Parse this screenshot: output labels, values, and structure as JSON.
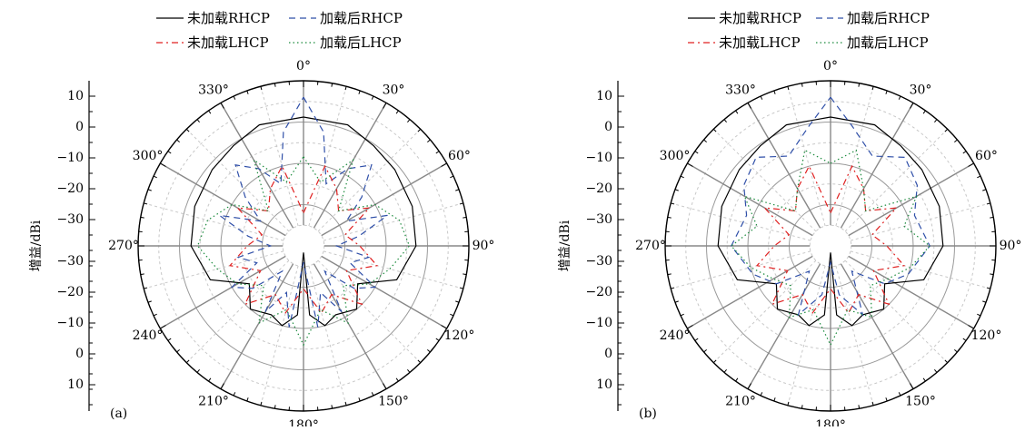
{
  "chart_data": [
    {
      "type": "polar-line",
      "panel_label": "(a)",
      "ylabel": "增益/dBi",
      "angle_unit": "°",
      "angle_ticks": [
        0,
        30,
        60,
        90,
        120,
        150,
        180,
        210,
        240,
        270,
        300,
        330
      ],
      "radial_labels_upper": [
        "10",
        "0",
        "−10",
        "−20",
        "−30"
      ],
      "radial_labels_lower": [
        "−30",
        "−20",
        "−10",
        "0",
        "10"
      ],
      "r_range_dbi": [
        -35,
        15
      ],
      "grid": true,
      "legend_placement": "top",
      "legend": [
        "未加载RHCP",
        "加载后RHCP",
        "未加载LHCP",
        "加载后LHCP"
      ],
      "series": [
        {
          "name": "未加载RHCP",
          "color": "#000000",
          "dash": "solid",
          "angles": [
            0,
            20,
            35,
            50,
            70,
            90,
            110,
            125,
            140,
            155,
            165,
            175,
            180,
            185,
            195,
            205,
            220,
            235,
            250,
            270,
            290,
            310,
            325,
            340,
            360
          ],
          "gain": [
            4,
            4,
            2,
            1,
            0,
            -1,
            -5,
            -15,
            -10,
            -12,
            -10,
            -14,
            -33,
            -14,
            -10,
            -12,
            -10,
            -15,
            -5,
            -1,
            0,
            1,
            2,
            4,
            4
          ]
        },
        {
          "name": "加载后RHCP",
          "color": "#2f4fa8",
          "dash": "dashed",
          "angles": [
            0,
            10,
            20,
            30,
            40,
            50,
            60,
            70,
            80,
            90,
            100,
            110,
            120,
            130,
            140,
            150,
            160,
            170,
            180,
            190,
            200,
            210,
            220,
            230,
            240,
            250,
            260,
            270,
            280,
            290,
            300,
            310,
            320,
            330,
            340,
            350,
            360
          ],
          "gain": [
            10,
            0,
            -15,
            -8,
            -3,
            -12,
            -20,
            -8,
            -18,
            -25,
            -15,
            -20,
            -10,
            -15,
            -25,
            -12,
            -20,
            -10,
            -30,
            -10,
            -20,
            -12,
            -25,
            -15,
            -10,
            -20,
            -15,
            -25,
            -18,
            -8,
            -20,
            -12,
            -3,
            -8,
            -15,
            0,
            10
          ]
        },
        {
          "name": "未加载LHCP",
          "color": "#e02020",
          "dash": "dashdot",
          "angles": [
            0,
            15,
            30,
            45,
            60,
            75,
            90,
            105,
            120,
            135,
            150,
            165,
            180,
            195,
            210,
            225,
            240,
            255,
            270,
            285,
            300,
            315,
            330,
            345,
            360
          ],
          "gain": [
            -25,
            -10,
            -15,
            -20,
            -12,
            -22,
            -18,
            -12,
            -20,
            -10,
            -18,
            -14,
            -22,
            -14,
            -18,
            -10,
            -20,
            -12,
            -18,
            -22,
            -12,
            -20,
            -15,
            -10,
            -25
          ]
        },
        {
          "name": "加载后LHCP",
          "color": "#1a8a3c",
          "dash": "dotted",
          "angles": [
            0,
            15,
            30,
            45,
            60,
            75,
            90,
            105,
            120,
            135,
            150,
            165,
            180,
            195,
            210,
            225,
            240,
            255,
            270,
            285,
            300,
            315,
            330,
            345,
            360
          ],
          "gain": [
            -8,
            -15,
            -5,
            -20,
            -10,
            -5,
            -3,
            -8,
            -12,
            -18,
            -8,
            -15,
            -5,
            -15,
            -8,
            -18,
            -12,
            -8,
            -3,
            -5,
            -10,
            -20,
            -5,
            -15,
            -8
          ]
        }
      ]
    },
    {
      "type": "polar-line",
      "panel_label": "(b)",
      "ylabel": "增益/dBi",
      "angle_unit": "°",
      "angle_ticks": [
        0,
        30,
        60,
        90,
        120,
        150,
        180,
        210,
        240,
        270,
        300,
        330
      ],
      "radial_labels_upper": [
        "10",
        "0",
        "−10",
        "−20",
        "−30"
      ],
      "radial_labels_lower": [
        "−30",
        "−20",
        "−10",
        "0",
        "10"
      ],
      "r_range_dbi": [
        -35,
        15
      ],
      "grid": true,
      "legend_placement": "top",
      "legend": [
        "未加载RHCP",
        "加载后RHCP",
        "未加载LHCP",
        "加载后LHCP"
      ],
      "series": [
        {
          "name": "未加载RHCP",
          "color": "#000000",
          "dash": "solid",
          "angles": [
            0,
            20,
            35,
            50,
            70,
            90,
            110,
            125,
            140,
            155,
            165,
            175,
            180,
            185,
            195,
            205,
            220,
            235,
            250,
            270,
            290,
            310,
            325,
            340,
            360
          ],
          "gain": [
            4,
            4,
            2,
            1,
            0,
            -1,
            -5,
            -15,
            -10,
            -12,
            -10,
            -14,
            -33,
            -14,
            -10,
            -12,
            -10,
            -15,
            -5,
            -1,
            0,
            1,
            2,
            4,
            4
          ]
        },
        {
          "name": "加载后RHCP",
          "color": "#2f4fa8",
          "dash": "dashed",
          "angles": [
            0,
            10,
            25,
            40,
            55,
            70,
            90,
            110,
            125,
            140,
            155,
            170,
            180,
            190,
            205,
            220,
            235,
            250,
            270,
            290,
            305,
            320,
            335,
            350,
            360
          ],
          "gain": [
            10,
            2,
            -5,
            0,
            -3,
            -8,
            -5,
            -10,
            -15,
            -25,
            -12,
            -20,
            -30,
            -20,
            -12,
            -25,
            -15,
            -10,
            -5,
            -8,
            -3,
            0,
            -5,
            2,
            10
          ]
        },
        {
          "name": "未加载LHCP",
          "color": "#e02020",
          "dash": "dashdot",
          "angles": [
            0,
            15,
            30,
            45,
            60,
            75,
            90,
            105,
            120,
            135,
            150,
            165,
            180,
            195,
            210,
            225,
            240,
            255,
            270,
            285,
            300,
            315,
            330,
            345,
            360
          ],
          "gain": [
            -25,
            -10,
            -15,
            -20,
            -12,
            -22,
            -18,
            -12,
            -20,
            -10,
            -18,
            -14,
            -22,
            -14,
            -18,
            -10,
            -20,
            -12,
            -18,
            -22,
            -12,
            -20,
            -15,
            -10,
            -25
          ]
        },
        {
          "name": "加载后LHCP",
          "color": "#1a8a3c",
          "dash": "dotted",
          "angles": [
            0,
            15,
            30,
            45,
            60,
            75,
            90,
            105,
            120,
            135,
            150,
            165,
            180,
            195,
            210,
            225,
            240,
            255,
            270,
            285,
            300,
            315,
            330,
            345,
            360
          ],
          "gain": [
            -10,
            -5,
            -15,
            -20,
            -5,
            -12,
            -5,
            -10,
            -15,
            -18,
            -10,
            -15,
            -5,
            -15,
            -10,
            -18,
            -15,
            -10,
            -5,
            -12,
            -5,
            -20,
            -15,
            -5,
            -10
          ]
        }
      ]
    }
  ]
}
